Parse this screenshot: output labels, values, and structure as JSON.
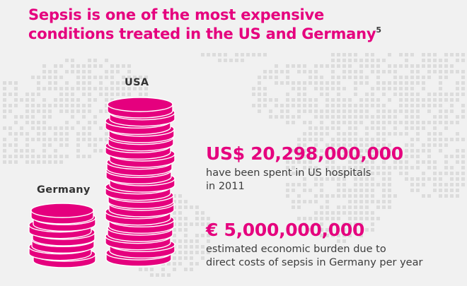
{
  "title": {
    "lines": [
      "Sepsis is one of the most expensive",
      "conditions treated in the US and Germany"
    ],
    "footnote": "5"
  },
  "stacks": {
    "usa_label": "USA",
    "germany_label": "Germany"
  },
  "stats": {
    "us": {
      "value": "US$ 20,298,000,000",
      "description_lines": [
        "have been spent in US hospitals",
        "in 2011"
      ]
    },
    "germany": {
      "value": "€ 5,000,000,000",
      "description_lines": [
        "estimated economic burden due to",
        "direct costs of sepsis in Germany per year"
      ]
    }
  },
  "colors": {
    "accent": "#e5007e",
    "coin_rim": "#ffffff",
    "background": "#f1f1f1",
    "map_dots": "#dcdcdc"
  }
}
